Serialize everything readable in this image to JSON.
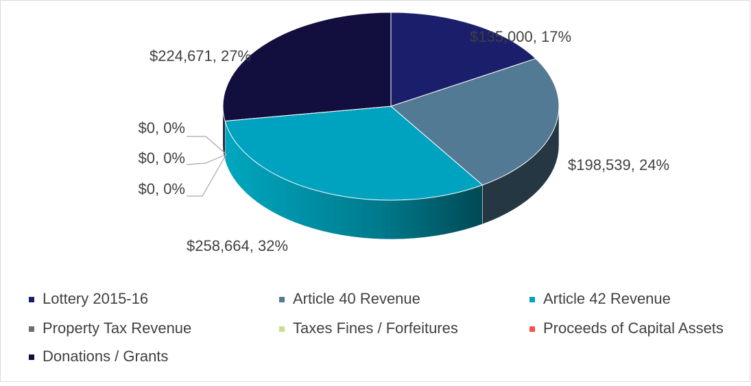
{
  "chart_data": {
    "type": "pie",
    "categories": [
      "Lottery 2015-16",
      "Article 40 Revenue",
      "Article 42 Revenue",
      "Property Tax Revenue",
      "Taxes Fines / Forfeitures",
      "Proceeds of Capital Assets",
      "Donations / Grants"
    ],
    "values": [
      135000,
      198539,
      258664,
      0,
      0,
      0,
      224671
    ],
    "value_labels": [
      "$135,000, 17%",
      "$198,539, 24%",
      "$258,664, 32%",
      "$0, 0%",
      "$0, 0%",
      "$0, 0%",
      "$224,671, 27%"
    ],
    "colors": [
      "#1b1f6b",
      "#527a94",
      "#00a3bf",
      "#6d6d6d",
      "#c3e08a",
      "#ff4d4d",
      "#120f3f"
    ],
    "legend": "bottom"
  }
}
